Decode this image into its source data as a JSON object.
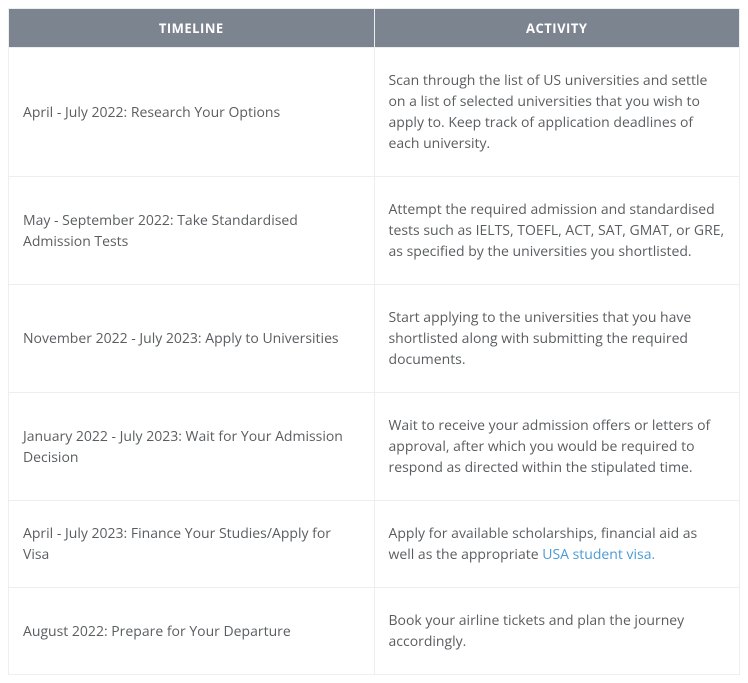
{
  "table": {
    "headers": {
      "timeline": "TIMELINE",
      "activity": "ACTIVITY"
    },
    "rows": [
      {
        "timeline": "April - July 2022: Research Your Options",
        "activity": "Scan through the list of US universities and settle on a list of selected universities that you wish to apply to. Keep track of application deadlines of each university."
      },
      {
        "timeline": " May - September 2022: Take Standardised Admission Tests",
        "activity": "Attempt the required admission and standardised tests such as IELTS, TOEFL, ACT, SAT, GMAT, or GRE, as specified by the universities you shortlisted."
      },
      {
        "timeline": "November 2022 - July 2023: Apply to Universities",
        "activity": "Start applying to the universities that you have shortlisted along with submitting the required documents."
      },
      {
        "timeline": "January 2022 - July 2023: Wait for Your Admission Decision",
        "activity": "Wait to receive your admission offers or letters of approval, after which you would be required to respond as directed within the stipulated time."
      },
      {
        "timeline": "April - July 2023: Finance Your Studies/Apply for Visa",
        "activity_prefix": "Apply for available scholarships, financial aid as well as the appropriate ",
        "activity_link_text": "USA student visa.",
        "has_link": true
      },
      {
        "timeline": "August 2022: Prepare for Your Departure",
        "activity": "Book your airline tickets and plan the journey accordingly."
      }
    ],
    "header_bg": "#7c8490",
    "header_fg": "#ffffff",
    "cell_fg": "#5a5d60",
    "border_color": "#eceeef",
    "link_color": "#4a9bd4"
  }
}
